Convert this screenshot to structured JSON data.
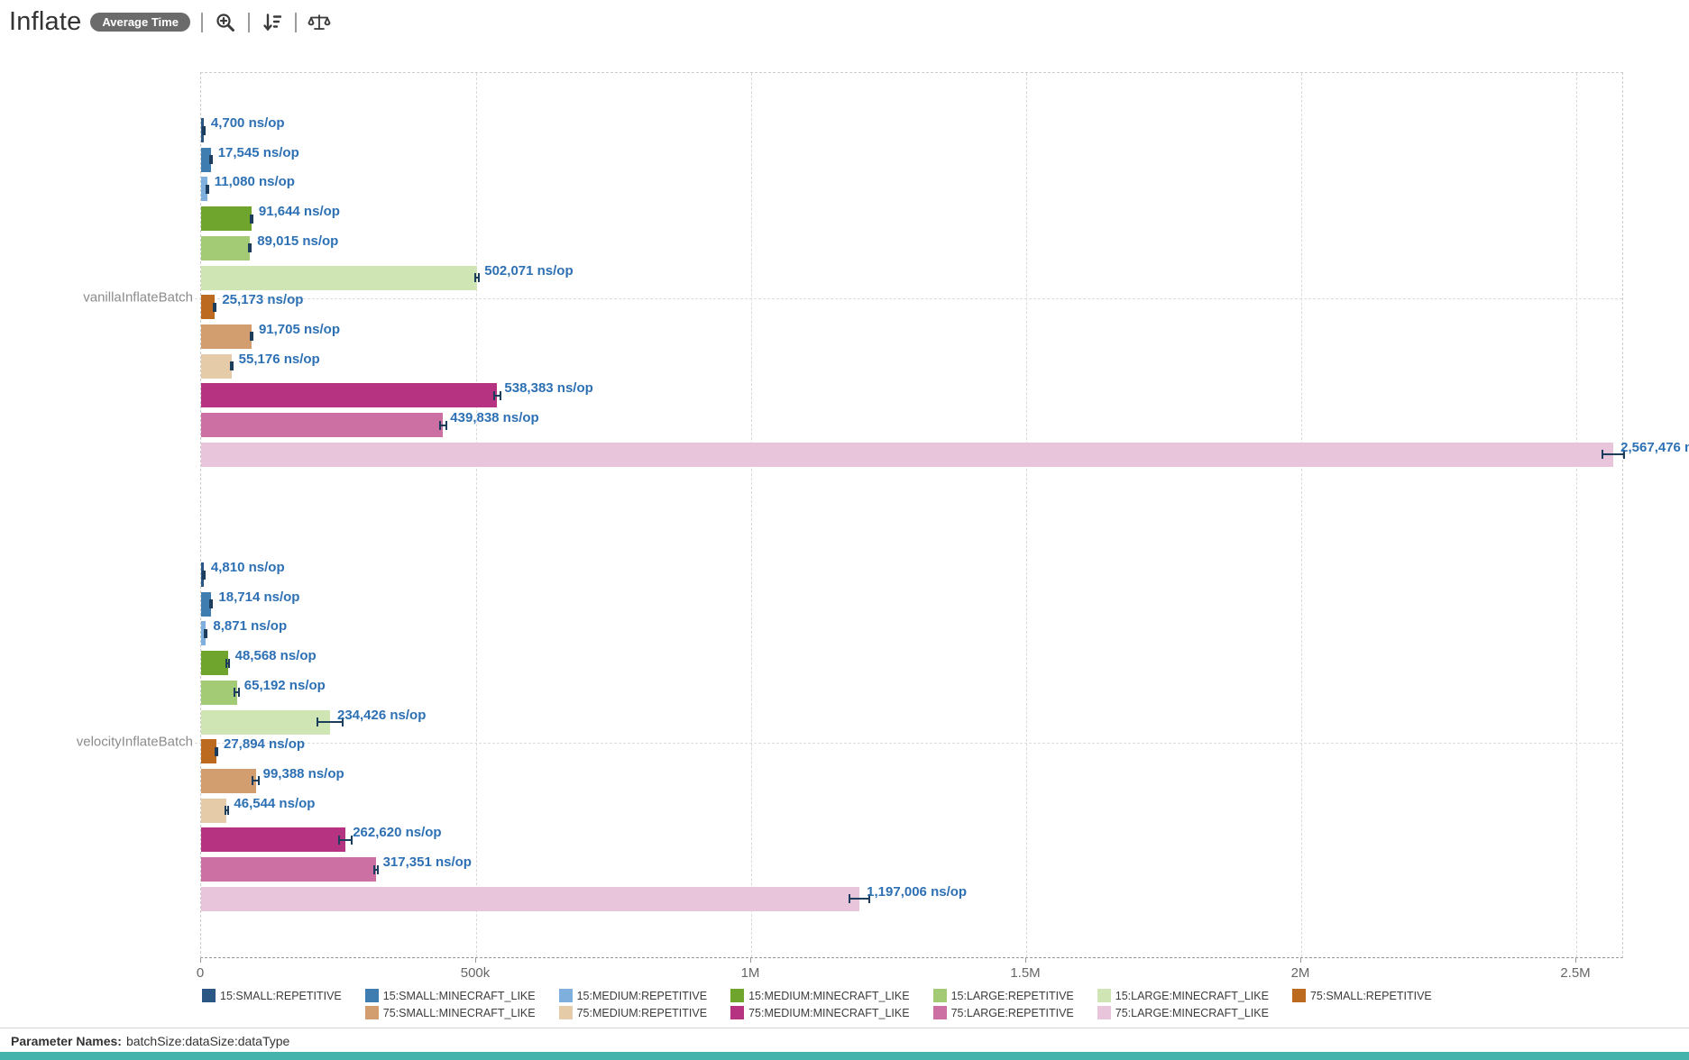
{
  "header": {
    "title": "Inflate",
    "mode_badge": "Average Time",
    "icons": [
      {
        "name": "zoom-in-icon"
      },
      {
        "name": "sort-icon"
      },
      {
        "name": "compare-scales-icon"
      }
    ]
  },
  "chart_data": {
    "type": "bar",
    "orientation": "horizontal",
    "unit": "ns/op",
    "title": "Inflate",
    "categories": [
      "vanillaInflateBatch",
      "velocityInflateBatch"
    ],
    "x_ticks": [
      {
        "label": "0",
        "value": 0
      },
      {
        "label": "500k",
        "value": 500000
      },
      {
        "label": "1M",
        "value": 1000000
      },
      {
        "label": "1.5M",
        "value": 1500000
      },
      {
        "label": "2M",
        "value": 2000000
      },
      {
        "label": "2.5M",
        "value": 2500000
      }
    ],
    "xlim": [
      0,
      2590000
    ],
    "grid": true,
    "legend_position": "bottom",
    "series": [
      {
        "name": "15:SMALL:REPETITIVE",
        "color": "#2a5783",
        "values": [
          4700,
          4810
        ],
        "errors": [
          1500,
          1500
        ]
      },
      {
        "name": "15:SMALL:MINECRAFT_LIKE",
        "color": "#3f7cb0",
        "values": [
          17545,
          18714
        ],
        "errors": [
          2500,
          3000
        ]
      },
      {
        "name": "15:MEDIUM:REPETITIVE",
        "color": "#7fafdc",
        "values": [
          11080,
          8871
        ],
        "errors": [
          2500,
          2500
        ]
      },
      {
        "name": "15:MEDIUM:MINECRAFT_LIKE",
        "color": "#6fa52c",
        "values": [
          91644,
          48568
        ],
        "errors": [
          3500,
          3500
        ]
      },
      {
        "name": "15:LARGE:REPETITIVE",
        "color": "#a3cb75",
        "values": [
          89015,
          65192
        ],
        "errors": [
          3500,
          5500
        ]
      },
      {
        "name": "15:LARGE:MINECRAFT_LIKE",
        "color": "#cfe5b3",
        "values": [
          502071,
          234426
        ],
        "errors": [
          5000,
          25000
        ]
      },
      {
        "name": "75:SMALL:REPETITIVE",
        "color": "#bd6a21",
        "values": [
          25173,
          27894
        ],
        "errors": [
          2500,
          3000
        ]
      },
      {
        "name": "75:SMALL:MINECRAFT_LIKE",
        "color": "#d29e6f",
        "values": [
          91705,
          99388
        ],
        "errors": [
          4000,
          7000
        ]
      },
      {
        "name": "75:MEDIUM:REPETITIVE",
        "color": "#e5cba8",
        "values": [
          55176,
          46544
        ],
        "errors": [
          3500,
          4000
        ]
      },
      {
        "name": "75:MEDIUM:MINECRAFT_LIKE",
        "color": "#b53381",
        "values": [
          538383,
          262620
        ],
        "errors": [
          7000,
          13000
        ]
      },
      {
        "name": "75:LARGE:REPETITIVE",
        "color": "#cc70a3",
        "values": [
          439838,
          317351
        ],
        "errors": [
          7000,
          5000
        ]
      },
      {
        "name": "75:LARGE:MINECRAFT_LIKE",
        "color": "#e9c5db",
        "values": [
          2567476,
          1197006
        ],
        "errors": [
          21000,
          20000
        ]
      }
    ]
  },
  "footer": {
    "label": "Parameter Names:",
    "value": "batchSize:dataSize:dataType"
  }
}
